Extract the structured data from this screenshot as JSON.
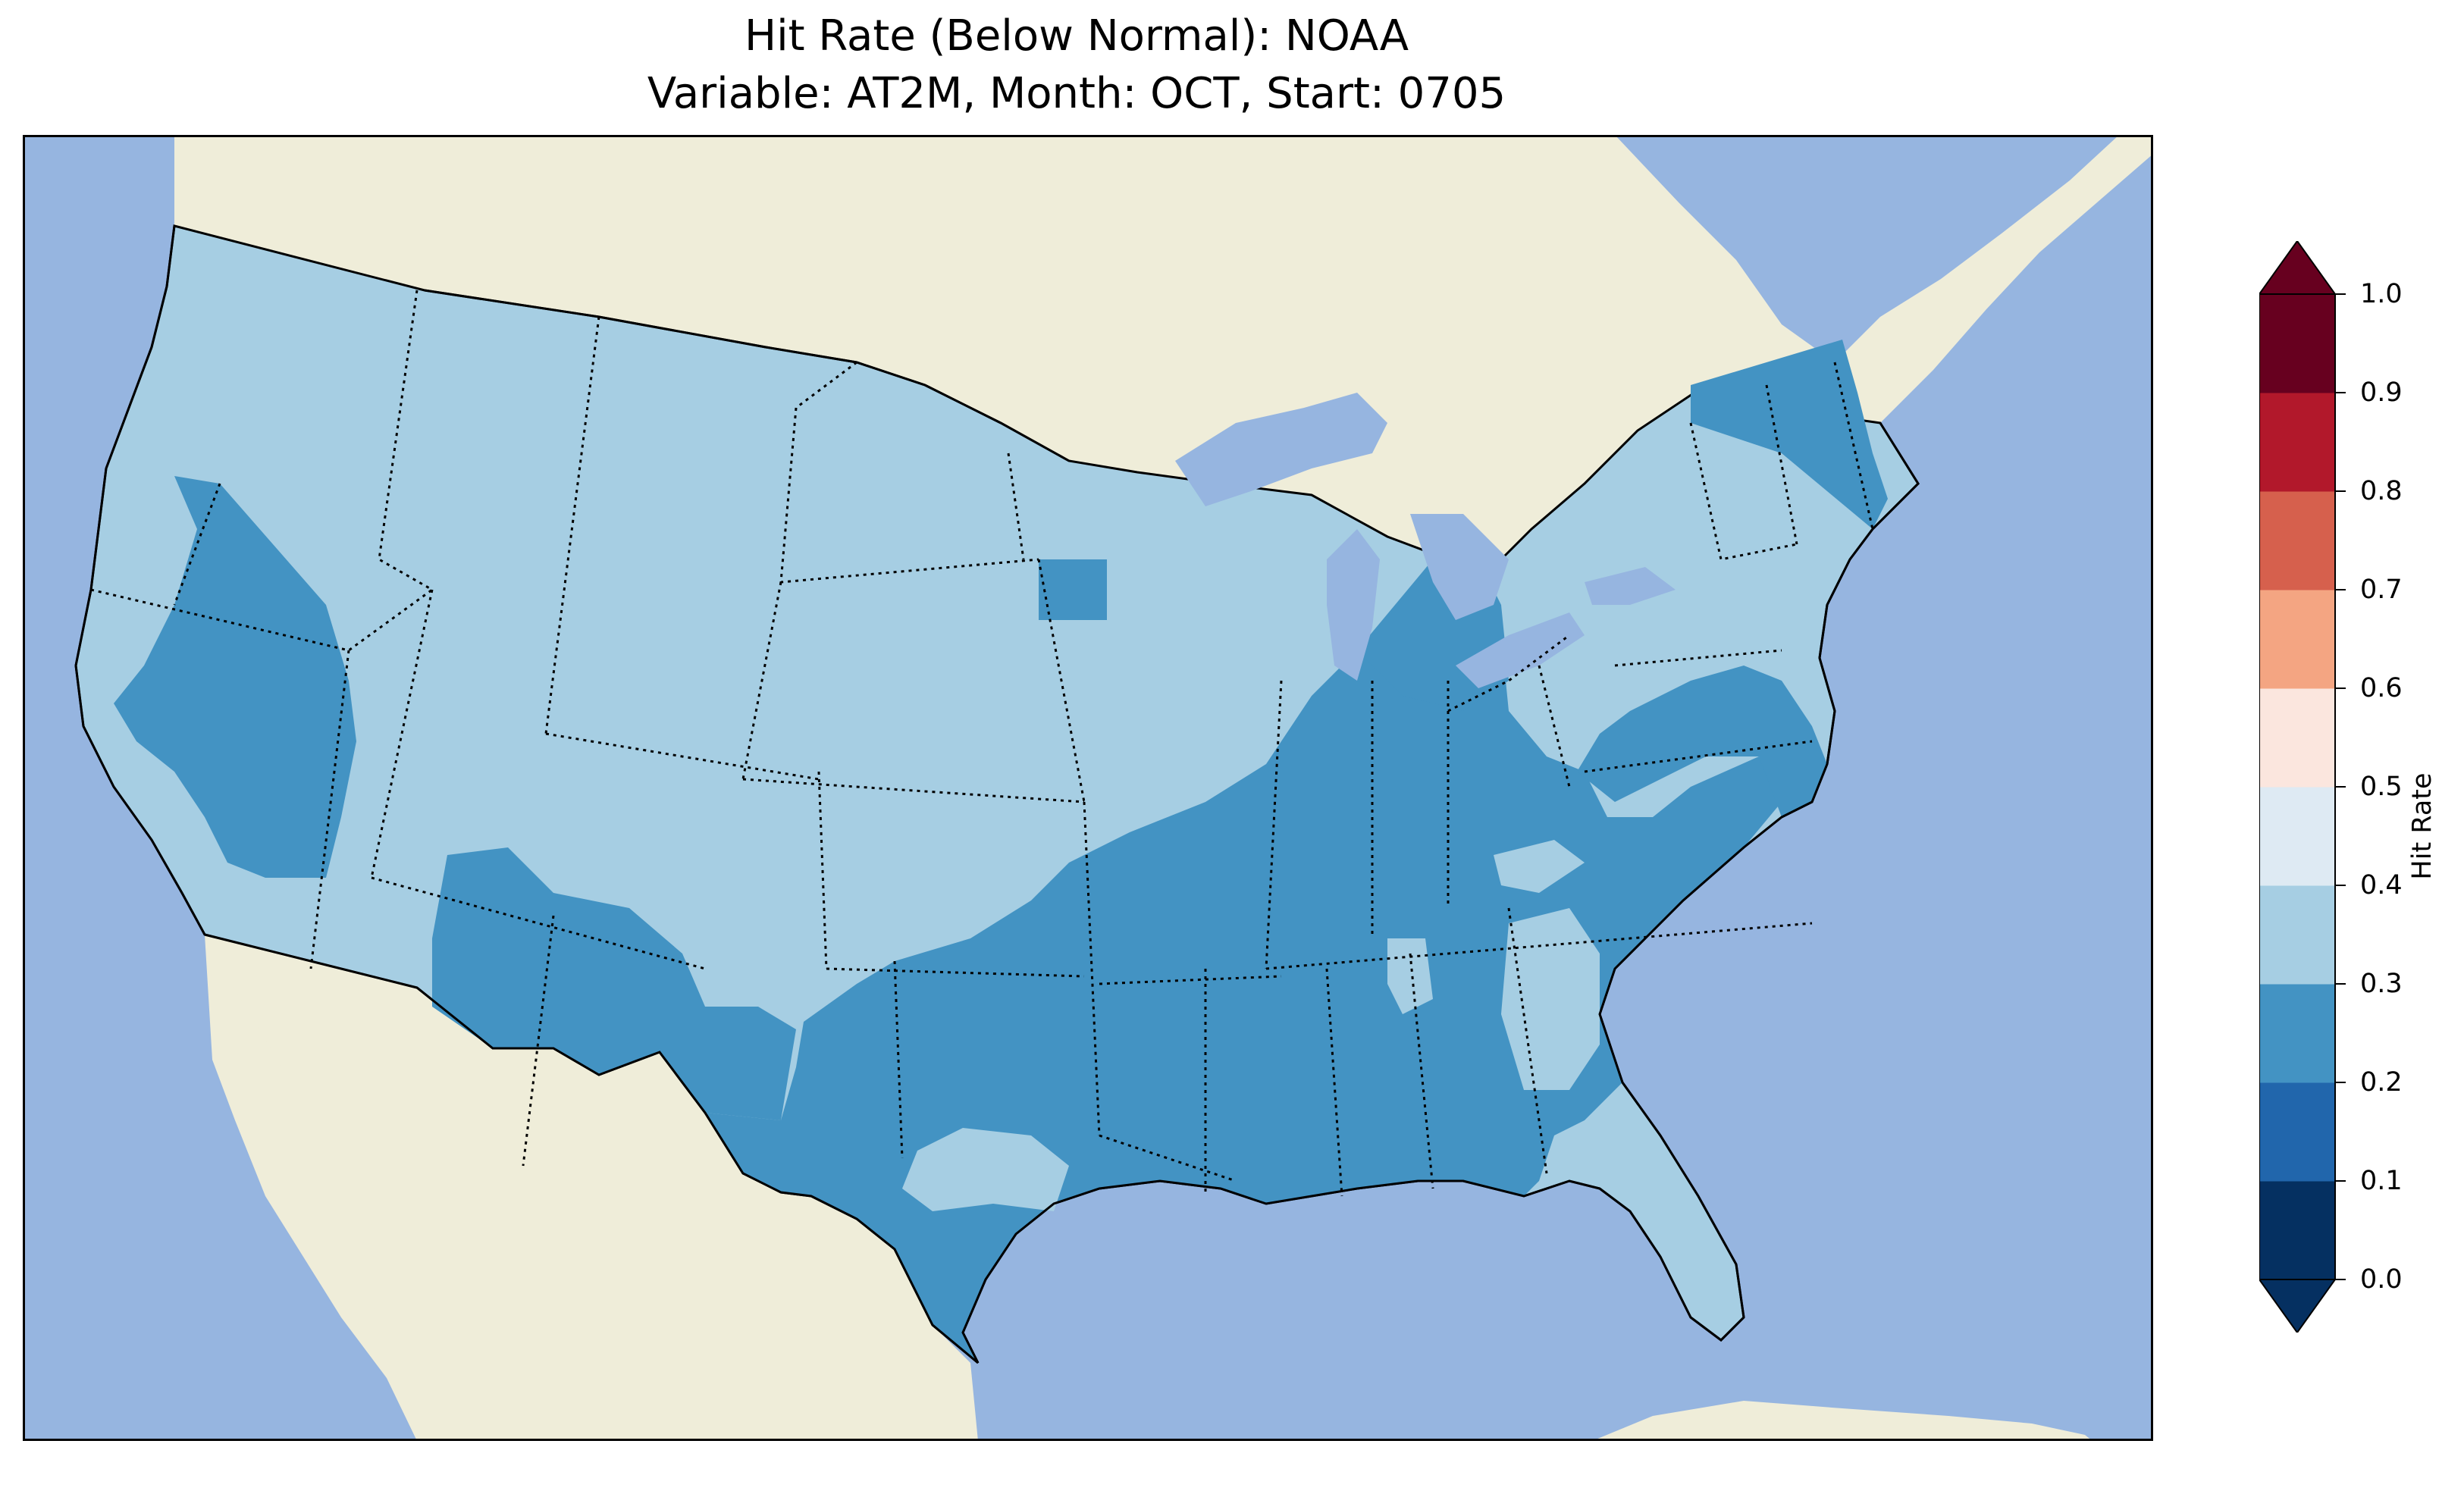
{
  "title": "Hit Rate (Below Normal): NOAA",
  "subtitle": "Variable: AT2M, Month: OCT, Start: 0705",
  "colorbar": {
    "label": "Hit Rate",
    "ticks": [
      "0.0",
      "0.1",
      "0.2",
      "0.3",
      "0.4",
      "0.5",
      "0.6",
      "0.7",
      "0.8",
      "0.9",
      "1.0"
    ],
    "bins": [
      {
        "range": [
          0.0,
          0.1
        ],
        "color": "#053061"
      },
      {
        "range": [
          0.1,
          0.2
        ],
        "color": "#2166ac"
      },
      {
        "range": [
          0.2,
          0.3
        ],
        "color": "#4393c3"
      },
      {
        "range": [
          0.3,
          0.4
        ],
        "color": "#a6cee3"
      },
      {
        "range": [
          0.4,
          0.5
        ],
        "color": "#deeaf3"
      },
      {
        "range": [
          0.5,
          0.6
        ],
        "color": "#fbe6de"
      },
      {
        "range": [
          0.6,
          0.7
        ],
        "color": "#f4a582"
      },
      {
        "range": [
          0.7,
          0.8
        ],
        "color": "#d6604d"
      },
      {
        "range": [
          0.8,
          0.9
        ],
        "color": "#b2182b"
      },
      {
        "range": [
          0.9,
          1.0
        ],
        "color": "#67001f"
      }
    ],
    "extend": "both"
  },
  "map": {
    "region": "Contiguous United States",
    "ocean_color": "#96b5e0",
    "land_color": "#efedd9",
    "dominant_hit_rate_bin": "0.3-0.4",
    "regions_in_0.2_0.3_bin": [
      "Southern Texas, Oklahoma, Arkansas, Louisiana",
      "Mississippi, Alabama, Tennessee, Kentucky",
      "Ohio Valley, Indiana, Illinois",
      "North Carolina, Virginia, Maryland",
      "New England and upstate New York",
      "Central California and Nevada",
      "Arizona and New Mexico"
    ]
  }
}
